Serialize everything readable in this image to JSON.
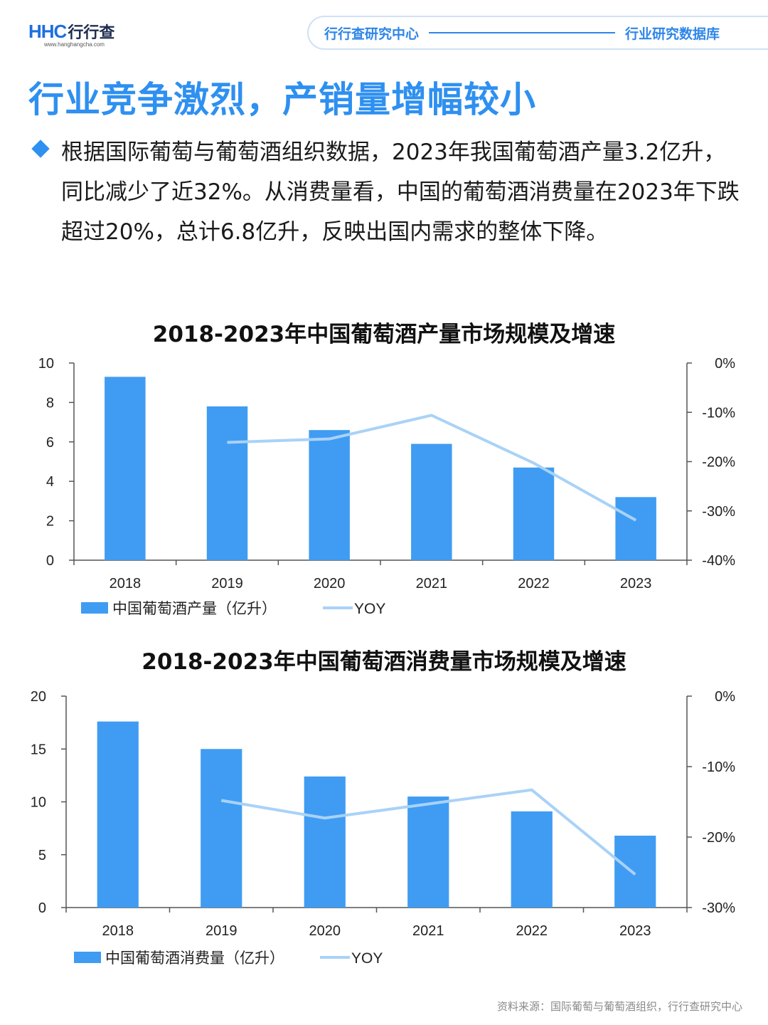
{
  "header": {
    "logo_text": "HHC",
    "logo_cn": "行行查",
    "logo_url": "www.hanghangcha.com",
    "pill_left": "行行查研究中心",
    "pill_right": "行业研究数据库"
  },
  "page_title": "行业竞争激烈，产销量增幅较小",
  "body_text": "根据国际葡萄与葡萄酒组织数据，2023年我国葡萄酒产量3.2亿升，同比减少了近32%。从消费量看，中国的葡萄酒消费量在2023年下跌超过20%，总计6.8亿升，反映出国内需求的整体下降。",
  "source": "资料来源：国际葡萄与葡萄酒组织，行行查研究中心",
  "colors": {
    "accent": "#2e90f0",
    "bar": "#3f9cf2",
    "line": "#a9d2f7"
  },
  "chart_data": [
    {
      "type": "bar",
      "title": "2018-2023年中国葡萄酒产量市场规模及增速",
      "categories": [
        "2018",
        "2019",
        "2020",
        "2021",
        "2022",
        "2023"
      ],
      "series": [
        {
          "name": "中国葡萄酒产量（亿升）",
          "type": "bar",
          "axis": "left",
          "values": [
            9.3,
            7.8,
            6.6,
            5.9,
            4.7,
            3.2
          ]
        },
        {
          "name": "YOY",
          "type": "line",
          "axis": "right",
          "values": [
            null,
            -16.1,
            -15.4,
            -10.6,
            -20.3,
            -31.9
          ]
        }
      ],
      "ylim": [
        0,
        10
      ],
      "yticks": [
        "0",
        "2",
        "4",
        "6",
        "8",
        "10"
      ],
      "y2lim": [
        -40,
        0
      ],
      "y2ticks": [
        "-40%",
        "-30%",
        "-20%",
        "-10%",
        "0%"
      ],
      "legend": "bottom-left",
      "grid": false
    },
    {
      "type": "bar",
      "title": "2018-2023年中国葡萄酒消费量市场规模及增速",
      "categories": [
        "2018",
        "2019",
        "2020",
        "2021",
        "2022",
        "2023"
      ],
      "series": [
        {
          "name": "中国葡萄酒消费量（亿升）",
          "type": "bar",
          "axis": "left",
          "values": [
            17.6,
            15.0,
            12.4,
            10.5,
            9.1,
            6.8
          ]
        },
        {
          "name": "YOY",
          "type": "line",
          "axis": "right",
          "values": [
            null,
            -14.8,
            -17.3,
            -15.3,
            -13.3,
            -25.3
          ]
        }
      ],
      "ylim": [
        0,
        20
      ],
      "yticks": [
        "0",
        "5",
        "10",
        "15",
        "20"
      ],
      "y2lim": [
        -30,
        0
      ],
      "y2ticks": [
        "-30%",
        "-20%",
        "-10%",
        "0%"
      ],
      "legend": "bottom-left",
      "grid": false
    }
  ]
}
